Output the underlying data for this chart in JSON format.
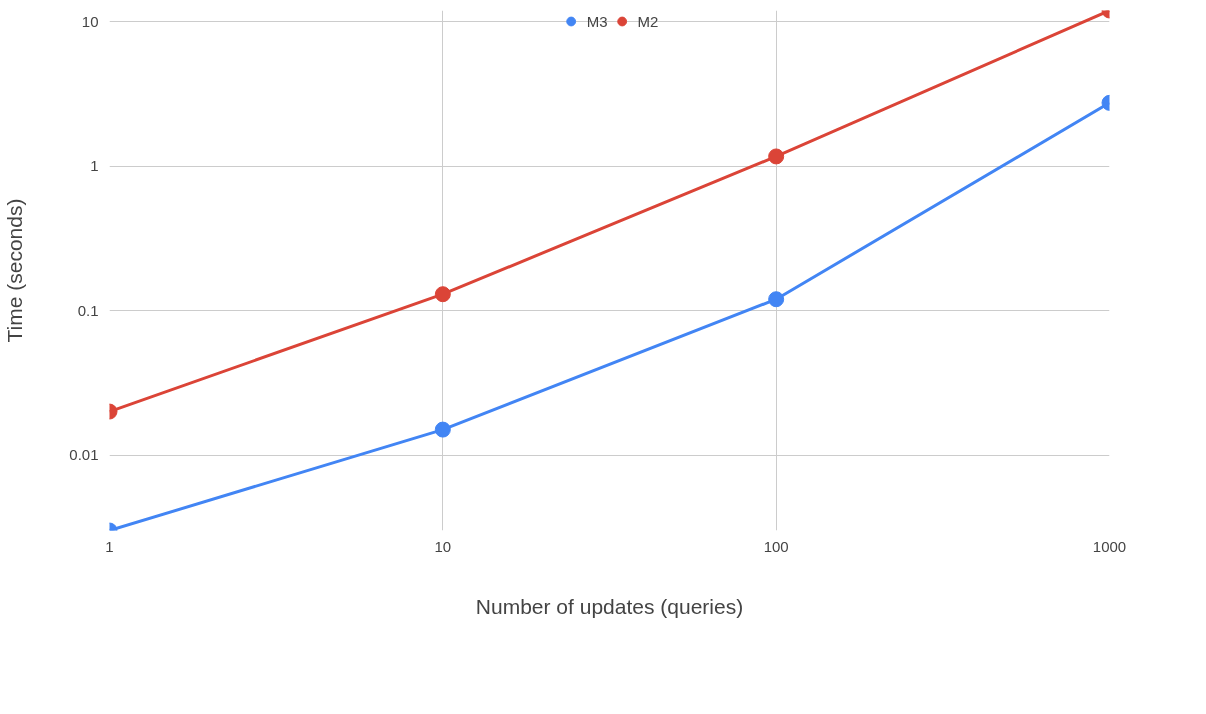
{
  "chart_data": {
    "type": "line",
    "xlabel": "Number of updates (queries)",
    "ylabel": "Time (seconds)",
    "x": [
      1,
      10,
      100,
      1000
    ],
    "series": [
      {
        "name": "M3",
        "color": "#4285f4",
        "values": [
          0.003,
          0.015,
          0.12,
          2.75
        ]
      },
      {
        "name": "M2",
        "color": "#db4437",
        "values": [
          0.02,
          0.13,
          1.17,
          12
        ]
      }
    ],
    "log": "xy",
    "xlim": [
      1,
      1000
    ],
    "ylim": [
      0.003,
      12
    ],
    "xticks": [
      1,
      10,
      100,
      1000
    ],
    "yticks": [
      0.01,
      0.1,
      1,
      10
    ],
    "grid": true,
    "legend": "top",
    "marker": "circle",
    "line_style": "solid"
  }
}
